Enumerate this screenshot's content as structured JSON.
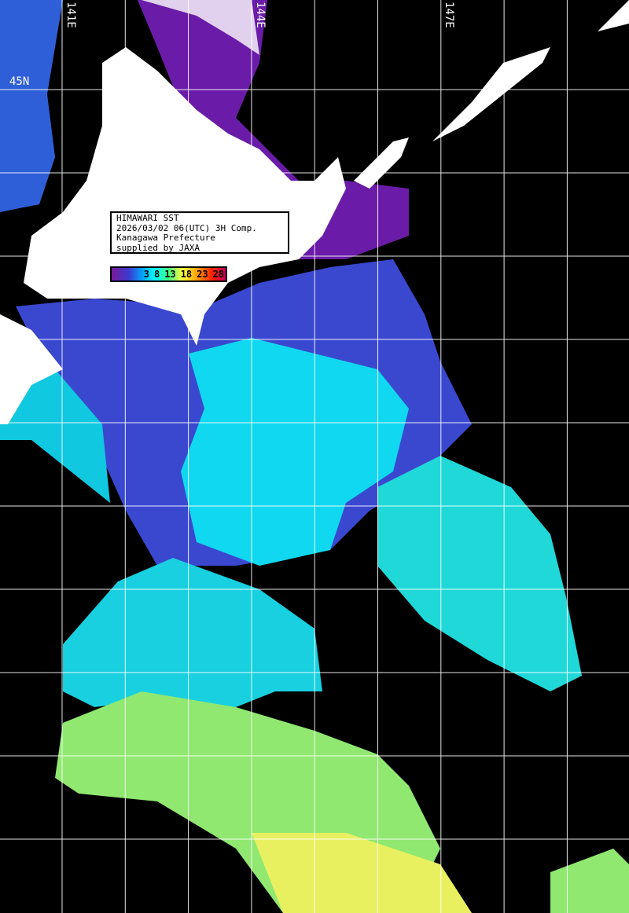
{
  "info_box": {
    "line1": "HIMAWARI SST",
    "line2": "2026/03/02 06(UTC) 3H Comp.",
    "line3": "Kanagawa Prefecture",
    "line4": "supplied by JAXA"
  },
  "legend": {
    "ticks": [
      "3",
      "8",
      "13",
      "18",
      "23",
      "28"
    ],
    "colors": [
      "#7a1a9a",
      "#3a3ad0",
      "#00aaff",
      "#00ffff",
      "#40ff80",
      "#ffff40",
      "#ffa000",
      "#ff2000",
      "#c00060"
    ]
  },
  "grid_labels": {
    "lon": [
      "141E",
      "144E",
      "147E"
    ],
    "lat": [
      "45N"
    ]
  },
  "colors": {
    "land": "#ffffff",
    "no_data": "#000000",
    "grid": "#ffffff"
  }
}
